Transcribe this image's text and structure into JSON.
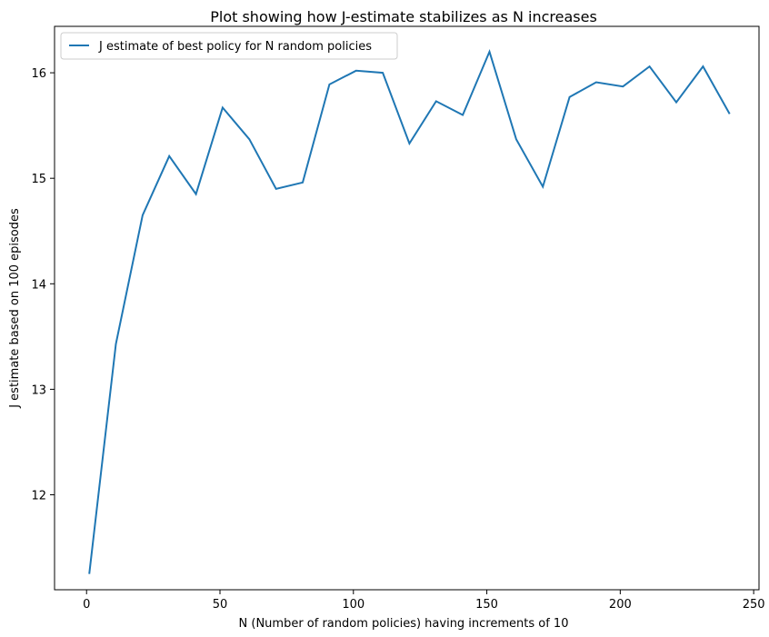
{
  "chart_data": {
    "type": "line",
    "title": "Plot showing how J-estimate stabilizes as N increases",
    "xlabel": "N (Number of random policies) having increments of 10",
    "ylabel": "J estimate based on 100 episodes",
    "xlim": [
      -12,
      252
    ],
    "ylim": [
      11.1,
      16.44
    ],
    "x_ticks": [
      0,
      50,
      100,
      150,
      200,
      250
    ],
    "y_ticks": [
      12,
      13,
      14,
      15,
      16
    ],
    "x_tick_labels": [
      "0",
      "50",
      "100",
      "150",
      "200",
      "250"
    ],
    "y_tick_labels": [
      "12",
      "13",
      "14",
      "15",
      "16"
    ],
    "grid": false,
    "legend_position": "top-left",
    "series": [
      {
        "name": "J estimate of best policy for N random policies",
        "color": "#1f77b4",
        "x": [
          1,
          11,
          21,
          31,
          41,
          51,
          61,
          71,
          81,
          91,
          101,
          111,
          121,
          131,
          141,
          151,
          161,
          171,
          181,
          191,
          201,
          211,
          221,
          231,
          241
        ],
        "y": [
          11.25,
          13.43,
          14.65,
          15.21,
          14.85,
          15.67,
          15.37,
          14.9,
          14.96,
          15.89,
          16.02,
          16.0,
          15.33,
          15.73,
          15.6,
          16.2,
          15.37,
          14.92,
          15.77,
          15.91,
          15.87,
          16.06,
          15.72,
          16.06,
          15.61
        ]
      }
    ]
  }
}
